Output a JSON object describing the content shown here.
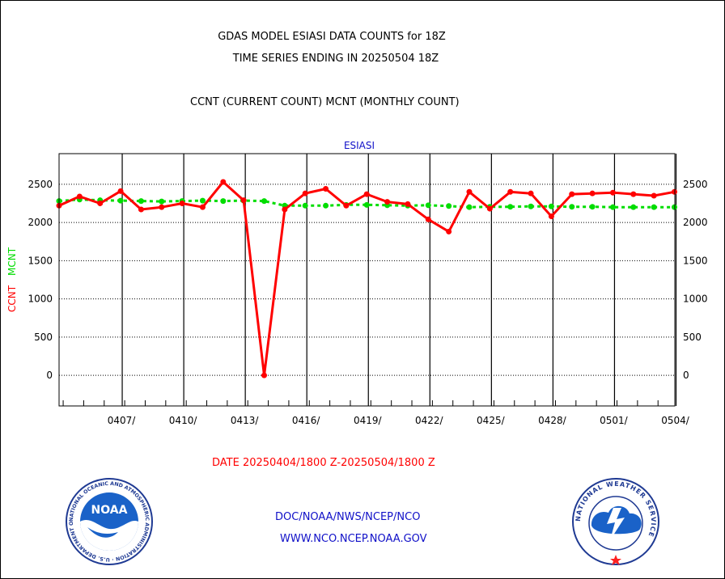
{
  "header": {
    "title_line1": "GDAS MODEL ESIASI DATA COUNTS for 18Z",
    "title_line2": "TIME SERIES ENDING IN 20250504 18Z",
    "legend_text": "CCNT (CURRENT COUNT) MCNT (MONTHLY COUNT)"
  },
  "footer": {
    "date_range": "DATE 20250404/1800 Z-20250504/1800 Z",
    "link1": "DOC/NOAA/NWS/NCEP/NCO",
    "link2": "WWW.NCO.NCEP.NOAA.GOV",
    "logo_left": "NOAA",
    "logo_left_ring": "NATIONAL OCEANIC AND ATMOSPHERIC ADMINISTRATION · U.S. DEPARTMENT OF COMMERCE",
    "logo_right_ring": "NATIONAL WEATHER SERVICE"
  },
  "chart_data": {
    "type": "line",
    "title": "ESIASI",
    "ylabel_ccnt": "CCNT",
    "ylabel_mcnt": "MCNT",
    "ylim": [
      -400,
      2900
    ],
    "yticks": [
      0,
      500,
      1000,
      1500,
      2000,
      2500
    ],
    "x_tick_labels": [
      "0407/",
      "0410/",
      "0413/",
      "0416/",
      "0419/",
      "0422/",
      "0425/",
      "0428/",
      "0501/",
      "0504/"
    ],
    "grid": true,
    "colors": {
      "ccnt": "#ff0000",
      "mcnt": "#00dd00",
      "axis": "#000000",
      "title": "#1010c8"
    },
    "days": [
      "0404",
      "0405",
      "0406",
      "0407",
      "0408",
      "0409",
      "0410",
      "0411",
      "0412",
      "0413",
      "0414",
      "0415",
      "0416",
      "0417",
      "0418",
      "0419",
      "0420",
      "0421",
      "0422",
      "0423",
      "0424",
      "0425",
      "0426",
      "0427",
      "0428",
      "0429",
      "0430",
      "0501",
      "0502",
      "0503",
      "0504"
    ],
    "series": [
      {
        "name": "CCNT",
        "values": [
          2220,
          2340,
          2250,
          2410,
          2170,
          2200,
          2250,
          2200,
          2530,
          2290,
          0,
          2170,
          2380,
          2440,
          2220,
          2370,
          2270,
          2240,
          2040,
          1880,
          2400,
          2180,
          2400,
          2380,
          2080,
          2370,
          2380,
          2390,
          2370,
          2350,
          2400
        ]
      },
      {
        "name": "MCNT",
        "values": [
          2280,
          2300,
          2290,
          2285,
          2280,
          2275,
          2280,
          2285,
          2280,
          2285,
          2280,
          2220,
          2220,
          2220,
          2230,
          2230,
          2225,
          2220,
          2225,
          2215,
          2200,
          2205,
          2205,
          2210,
          2210,
          2205,
          2205,
          2200,
          2200,
          2200,
          2200
        ]
      }
    ]
  }
}
